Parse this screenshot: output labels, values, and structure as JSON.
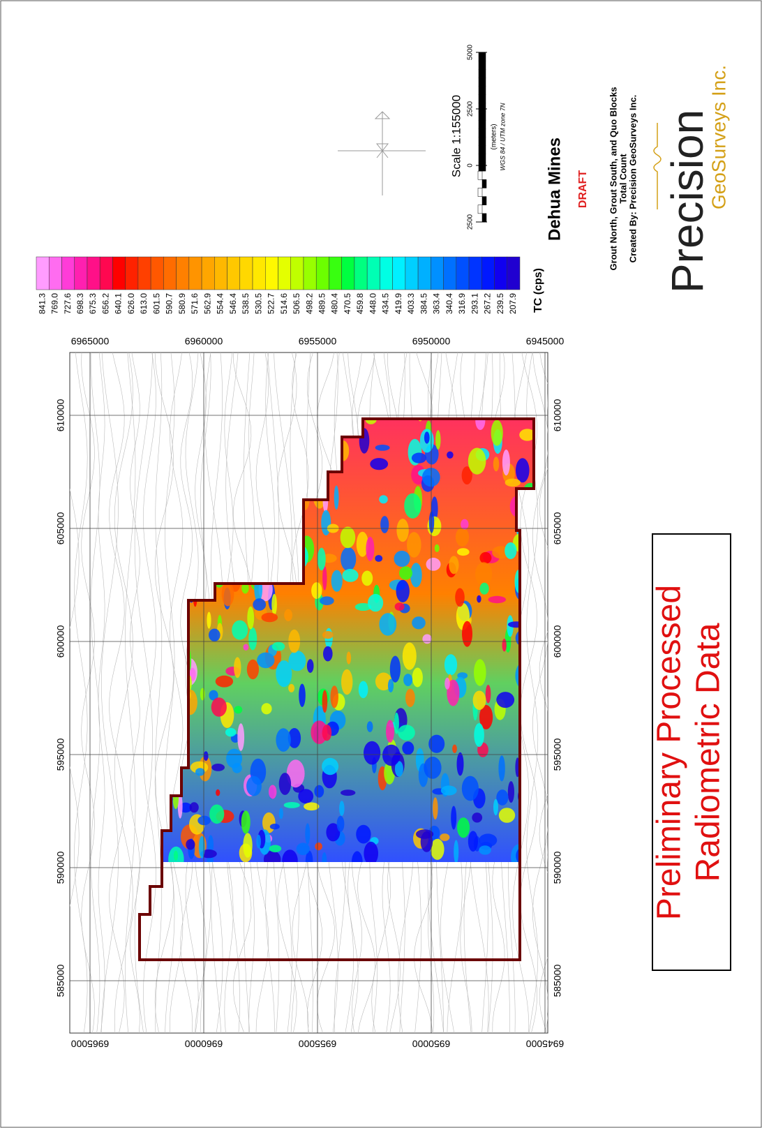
{
  "map": {
    "eastings": [
      585000,
      590000,
      595000,
      600000,
      605000,
      610000
    ],
    "northings": [
      6965000,
      6960000,
      6955000,
      6950000,
      6945000
    ],
    "legend": {
      "labels": [
        "841.3",
        "769.0",
        "727.6",
        "698.3",
        "675.3",
        "656.2",
        "640.1",
        "626.0",
        "613.0",
        "601.5",
        "590.7",
        "580.9",
        "571.6",
        "562.9",
        "554.4",
        "546.4",
        "538.5",
        "530.5",
        "522.7",
        "514.6",
        "506.5",
        "498.2",
        "489.5",
        "480.4",
        "470.5",
        "459.8",
        "448.0",
        "434.5",
        "419.9",
        "403.3",
        "384.5",
        "363.4",
        "340.4",
        "316.9",
        "293.1",
        "267.2",
        "239.5",
        "207.9"
      ],
      "colors": [
        "#ff9cff",
        "#ff6cf0",
        "#ff3cd8",
        "#ff20b0",
        "#ff1088",
        "#ff0850",
        "#ff0000",
        "#ff2200",
        "#ff4000",
        "#ff5800",
        "#ff6c00",
        "#ff8000",
        "#ff9400",
        "#ffa600",
        "#ffb800",
        "#ffc800",
        "#ffd800",
        "#ffe800",
        "#fff800",
        "#e4ff00",
        "#c0ff00",
        "#98ff00",
        "#6cff00",
        "#38ff10",
        "#00ff40",
        "#00ff80",
        "#00ffb4",
        "#00ffe4",
        "#00f0ff",
        "#00d0ff",
        "#00b0ff",
        "#0090ff",
        "#0070ff",
        "#0050ff",
        "#0034ff",
        "#0018ff",
        "#1000f0",
        "#2000d0"
      ],
      "unit": "TC (cps)"
    },
    "scale": {
      "title": "Scale 1:155000",
      "ticks": [
        {
          "value": -2500,
          "label": "2500"
        },
        0,
        2500,
        5000
      ],
      "units": "(meters)",
      "projection": "WGS 84 / UTM zone 7N"
    },
    "title_block": {
      "title": "Dehua Mines",
      "status": "DRAFT",
      "lines": [
        "Grout North, Grout South, and Quo Blocks",
        "Total Count",
        "Created By: Precision GeoSurveys Inc."
      ]
    },
    "logo": {
      "name": "Precision",
      "tagline": "GeoSurveys Inc."
    },
    "banner": [
      "Preliminary Processed",
      "Radiometric Data"
    ]
  }
}
